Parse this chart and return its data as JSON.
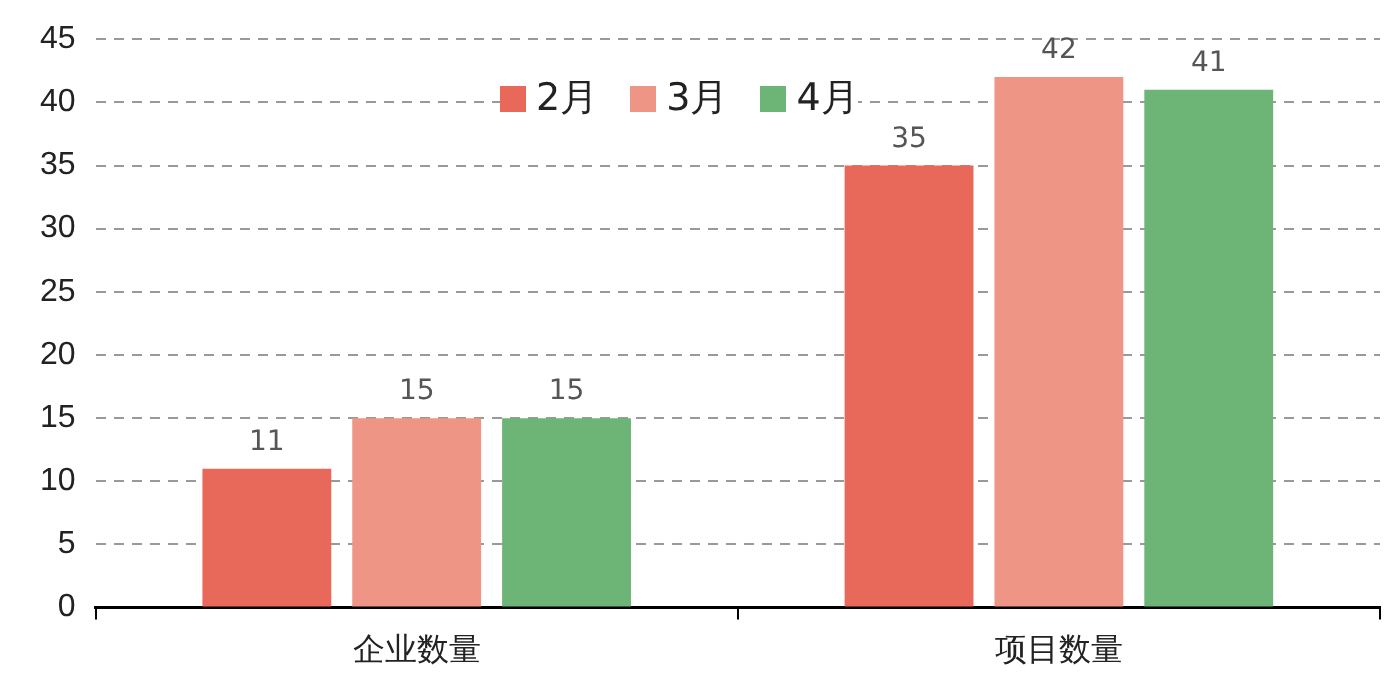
{
  "chart_data": {
    "type": "bar",
    "categories": [
      "企业数量",
      "项目数量"
    ],
    "series": [
      {
        "name": "2月",
        "color": "#e8695a",
        "values": [
          11,
          35
        ]
      },
      {
        "name": "3月",
        "color": "#ee9586",
        "values": [
          15,
          42
        ]
      },
      {
        "name": "4月",
        "color": "#6db577",
        "values": [
          15,
          41
        ]
      }
    ],
    "ylim": [
      0,
      45
    ],
    "yticks": [
      0,
      5,
      10,
      15,
      20,
      25,
      30,
      35,
      40,
      45
    ],
    "grid": "y",
    "legend": "top",
    "data_labels": true
  }
}
